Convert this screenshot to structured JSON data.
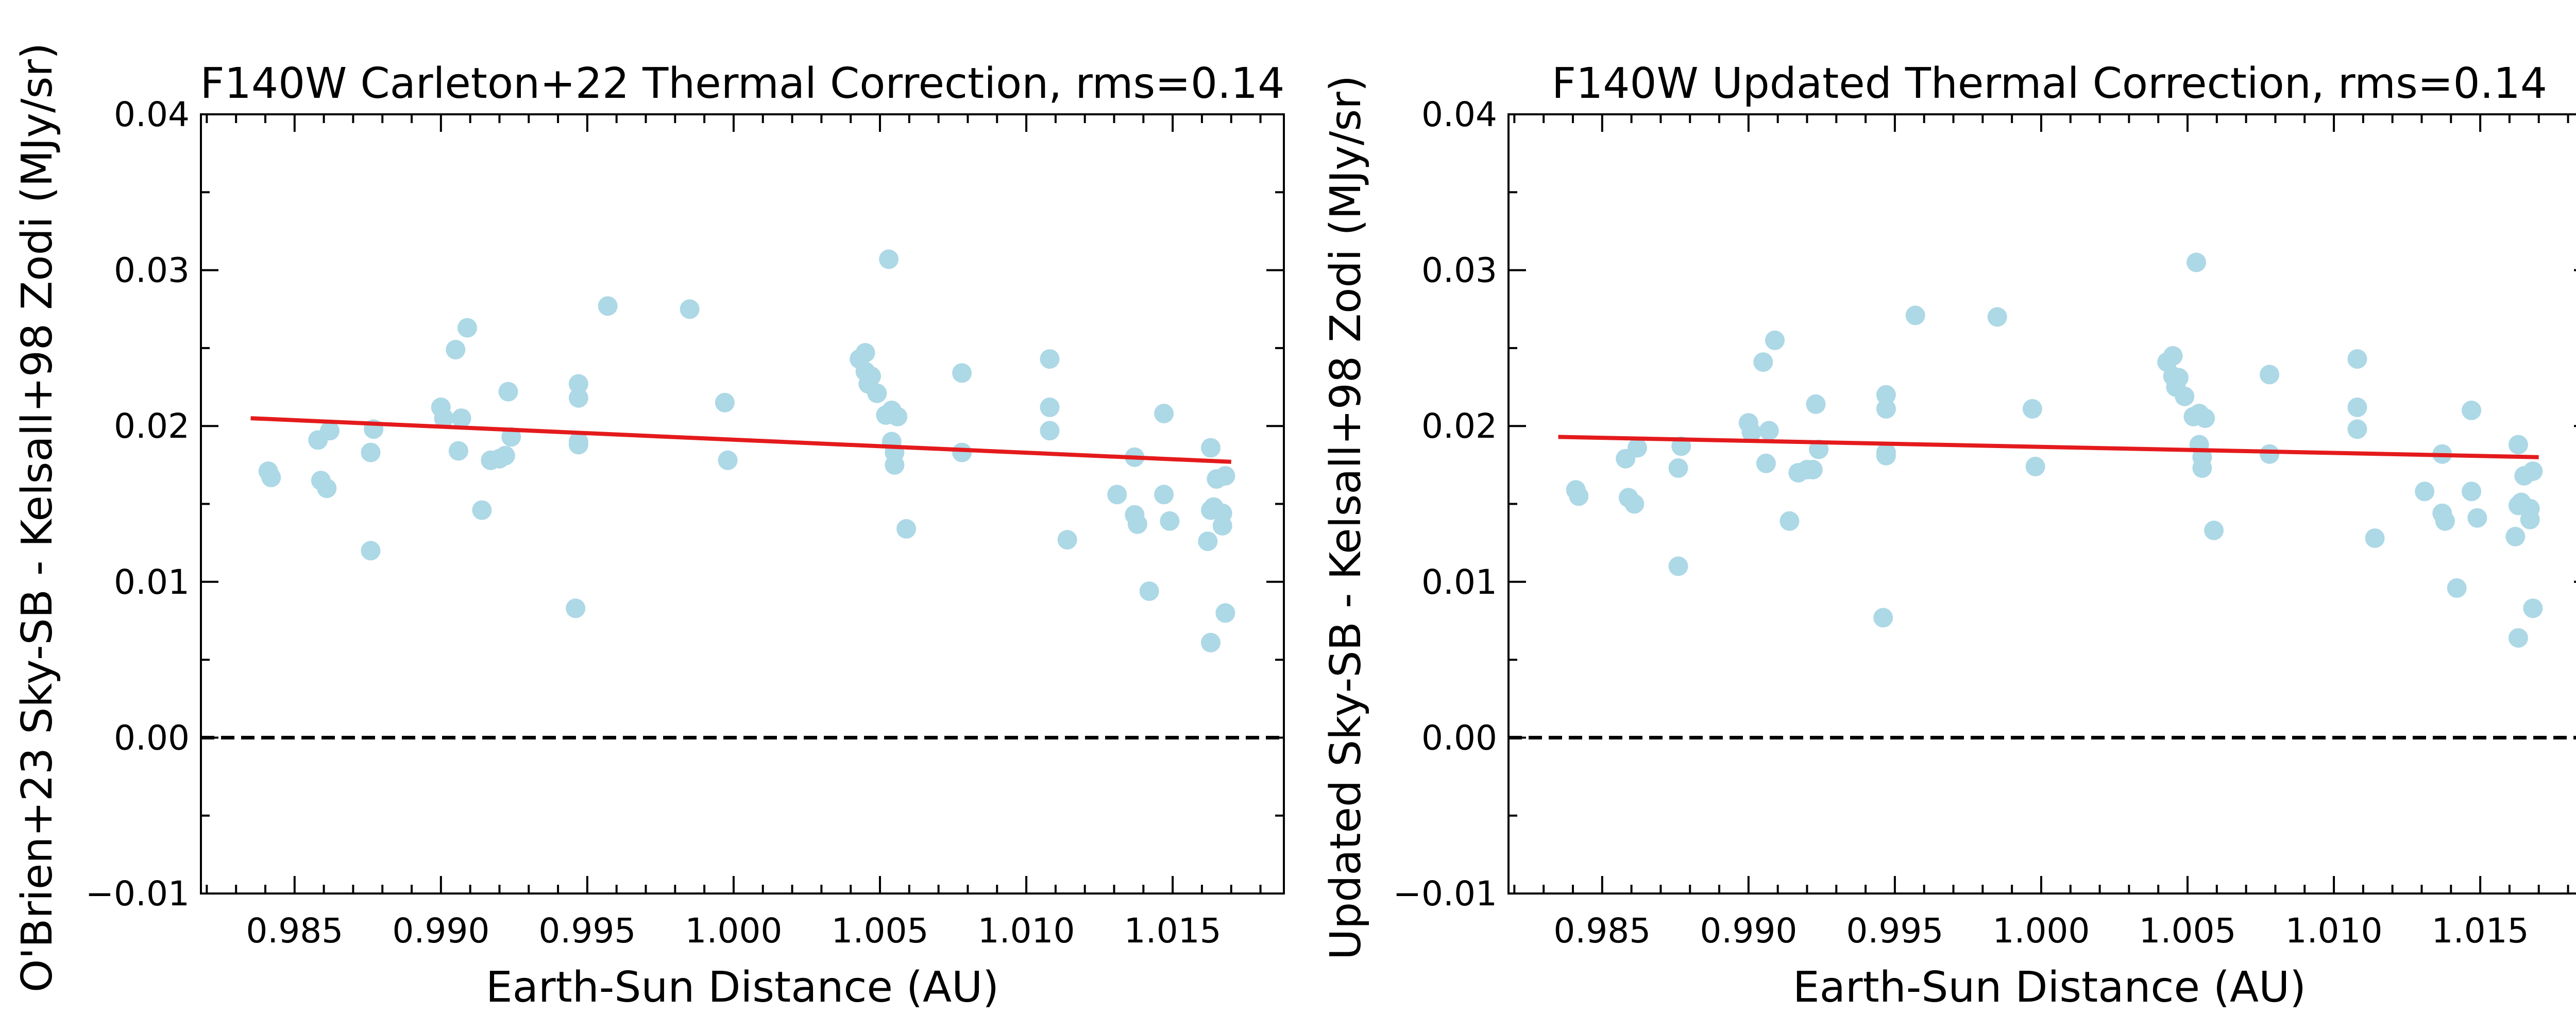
{
  "chart_data": [
    {
      "type": "scatter",
      "title": "F140W Carleton+22 Thermal Correction, rms=0.14",
      "xlabel": "Earth-Sun Distance (AU)",
      "ylabel": "O'Brien+23 Sky-SB - Kelsall+98 Zodi (MJy/sr)",
      "xlim": [
        0.9818,
        1.0188
      ],
      "ylim": [
        -0.01,
        0.04
      ],
      "xticks": [
        "0.985",
        "0.990",
        "0.995",
        "1.000",
        "1.005",
        "1.010",
        "1.015"
      ],
      "yticks": [
        "−0.01",
        "0.00",
        "0.01",
        "0.02",
        "0.03",
        "0.04"
      ],
      "grid": false,
      "series": [
        {
          "kind": "points",
          "color": "#add8e6",
          "x": [
            0.9841,
            0.9842,
            0.9858,
            0.9859,
            0.9861,
            0.9862,
            0.9876,
            0.9876,
            0.9877,
            0.99,
            0.9901,
            0.9905,
            0.9906,
            0.9907,
            0.9909,
            0.9914,
            0.9917,
            0.992,
            0.9922,
            0.9923,
            0.9924,
            0.9946,
            0.9947,
            0.9947,
            0.9947,
            0.9947,
            0.9957,
            0.9985,
            0.9997,
            0.9998,
            1.0043,
            1.0045,
            1.0045,
            1.0046,
            1.0047,
            1.0049,
            1.0052,
            1.0053,
            1.0054,
            1.0054,
            1.0055,
            1.0055,
            1.0056,
            1.0059,
            1.0078,
            1.0078,
            1.0108,
            1.0108,
            1.0108,
            1.0114,
            1.0131,
            1.0137,
            1.0137,
            1.0138,
            1.0142,
            1.0147,
            1.0147,
            1.0149,
            1.0162,
            1.0163,
            1.0163,
            1.0163,
            1.0164,
            1.0165,
            1.0167,
            1.0167,
            1.0168,
            1.0168
          ],
          "y": [
            0.0171,
            0.0167,
            0.0191,
            0.0165,
            0.016,
            0.0197,
            0.012,
            0.0183,
            0.0198,
            0.0212,
            0.0205,
            0.0249,
            0.0184,
            0.0205,
            0.0263,
            0.0146,
            0.0178,
            0.0179,
            0.0181,
            0.0222,
            0.0193,
            0.0083,
            0.0188,
            0.019,
            0.0218,
            0.0227,
            0.0277,
            0.0275,
            0.0215,
            0.0178,
            0.0243,
            0.0247,
            0.0235,
            0.0227,
            0.0232,
            0.0221,
            0.0207,
            0.0307,
            0.021,
            0.019,
            0.0183,
            0.0175,
            0.0206,
            0.0134,
            0.0234,
            0.0183,
            0.0243,
            0.0212,
            0.0197,
            0.0127,
            0.0156,
            0.018,
            0.0143,
            0.0137,
            0.0094,
            0.0208,
            0.0156,
            0.0139,
            0.0126,
            0.0186,
            0.0146,
            0.0061,
            0.0148,
            0.0166,
            0.0144,
            0.0136,
            0.008,
            0.0168
          ]
        },
        {
          "kind": "fit",
          "color": "#e41a1c",
          "x": [
            0.9835,
            1.017
          ],
          "y": [
            0.0205,
            0.0177
          ]
        },
        {
          "kind": "reference",
          "color": "#000000",
          "x": [
            0.9818,
            1.0188
          ],
          "y": [
            0.0,
            0.0
          ]
        }
      ]
    },
    {
      "type": "scatter",
      "title": "F140W Updated Thermal Correction, rms=0.14",
      "xlabel": "Earth-Sun Distance (AU)",
      "ylabel": "Updated Sky-SB - Kelsall+98 Zodi (MJy/sr)",
      "xlim": [
        0.9818,
        1.0188
      ],
      "ylim": [
        -0.01,
        0.04
      ],
      "xticks": [
        "0.985",
        "0.990",
        "0.995",
        "1.000",
        "1.005",
        "1.010",
        "1.015"
      ],
      "yticks": [
        "−0.01",
        "0.00",
        "0.01",
        "0.02",
        "0.03",
        "0.04"
      ],
      "grid": false,
      "series": [
        {
          "kind": "points",
          "color": "#add8e6",
          "x": [
            0.9841,
            0.9842,
            0.9858,
            0.9859,
            0.9861,
            0.9862,
            0.9876,
            0.9876,
            0.9877,
            0.99,
            0.9901,
            0.9905,
            0.9906,
            0.9907,
            0.9909,
            0.9914,
            0.9917,
            0.992,
            0.9922,
            0.9923,
            0.9924,
            0.9946,
            0.9947,
            0.9947,
            0.9947,
            0.9947,
            0.9957,
            0.9985,
            0.9997,
            0.9998,
            1.0043,
            1.0045,
            1.0045,
            1.0046,
            1.0047,
            1.0049,
            1.0052,
            1.0053,
            1.0054,
            1.0054,
            1.0055,
            1.0055,
            1.0056,
            1.0059,
            1.0078,
            1.0078,
            1.0108,
            1.0108,
            1.0108,
            1.0114,
            1.0131,
            1.0137,
            1.0137,
            1.0138,
            1.0142,
            1.0147,
            1.0147,
            1.0149,
            1.0162,
            1.0163,
            1.0163,
            1.0163,
            1.0164,
            1.0165,
            1.0167,
            1.0167,
            1.0168,
            1.0168
          ],
          "y": [
            0.0159,
            0.0155,
            0.0179,
            0.0154,
            0.015,
            0.0186,
            0.011,
            0.0173,
            0.0187,
            0.0202,
            0.0196,
            0.0241,
            0.0176,
            0.0197,
            0.0255,
            0.0139,
            0.017,
            0.0172,
            0.0172,
            0.0214,
            0.0185,
            0.0077,
            0.0181,
            0.0183,
            0.0211,
            0.022,
            0.0271,
            0.027,
            0.0211,
            0.0174,
            0.0241,
            0.0245,
            0.0232,
            0.0225,
            0.0231,
            0.0219,
            0.0206,
            0.0305,
            0.0208,
            0.0188,
            0.018,
            0.0173,
            0.0205,
            0.0133,
            0.0233,
            0.0182,
            0.0243,
            0.0212,
            0.0198,
            0.0128,
            0.0158,
            0.0182,
            0.0144,
            0.0139,
            0.0096,
            0.021,
            0.0158,
            0.0141,
            0.0129,
            0.0188,
            0.0149,
            0.0064,
            0.0151,
            0.0168,
            0.0147,
            0.014,
            0.0083,
            0.0171
          ]
        },
        {
          "kind": "fit",
          "color": "#e41a1c",
          "x": [
            0.9835,
            1.017
          ],
          "y": [
            0.0193,
            0.018
          ]
        },
        {
          "kind": "reference",
          "color": "#000000",
          "x": [
            0.9818,
            1.0188
          ],
          "y": [
            0.0,
            0.0
          ]
        }
      ]
    }
  ]
}
